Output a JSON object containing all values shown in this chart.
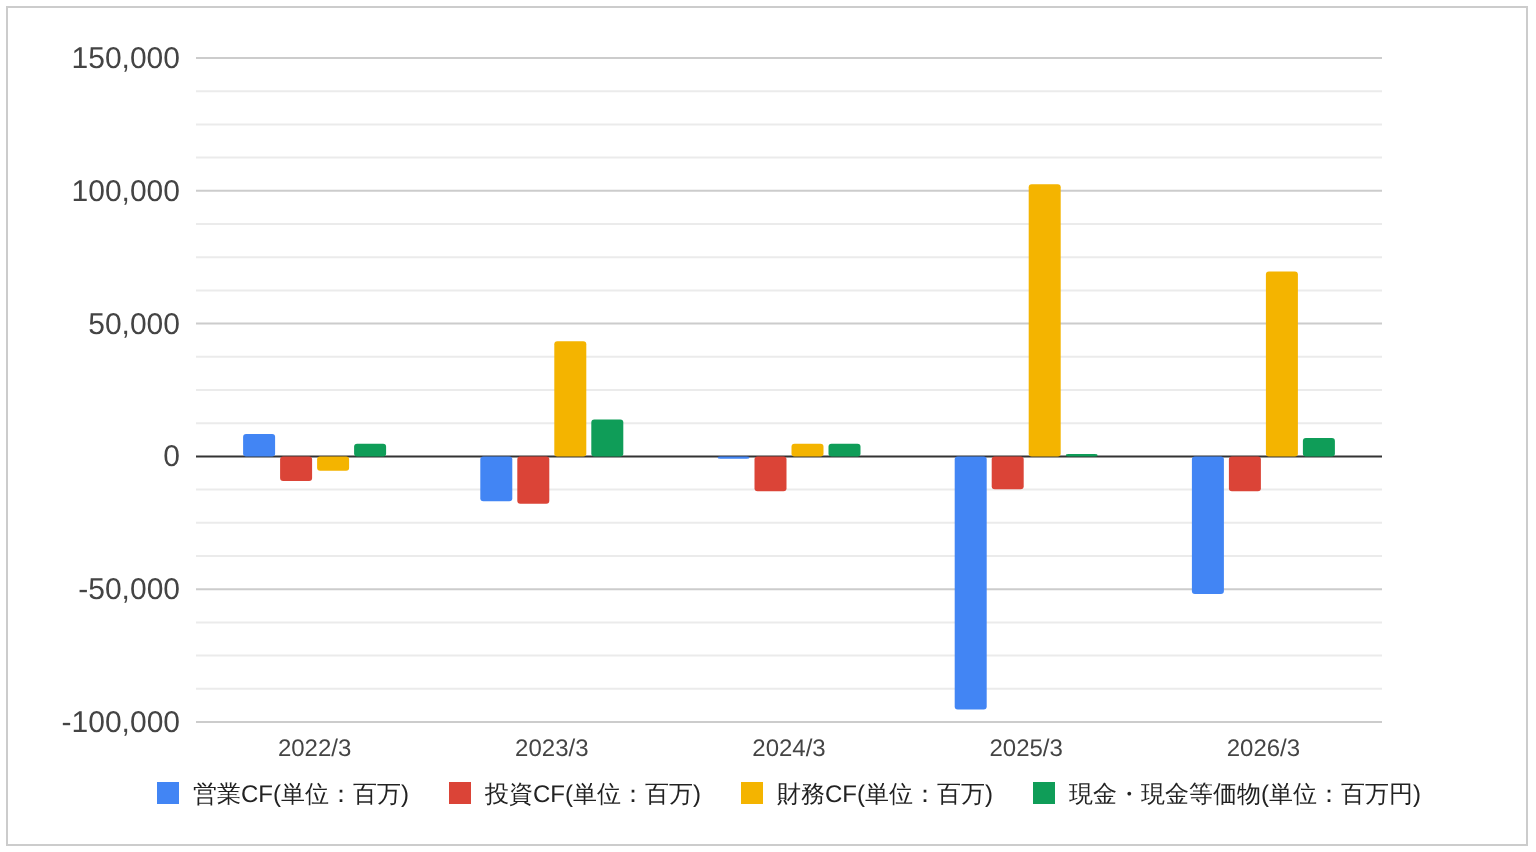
{
  "chart_data": {
    "type": "bar",
    "categories": [
      "2022/3",
      "2023/3",
      "2024/3",
      "2025/3",
      "2026/3"
    ],
    "series": [
      {
        "name": "営業CF(単位：百万)",
        "color": "#4285f4",
        "values": [
          8400,
          -16900,
          -900,
          -95300,
          -51800
        ]
      },
      {
        "name": "投資CF(単位：百万)",
        "color": "#db4437",
        "values": [
          -9300,
          -17800,
          -13100,
          -12400,
          -13100
        ]
      },
      {
        "name": "財務CF(単位：百万)",
        "color": "#f4b400",
        "values": [
          -5400,
          43400,
          4800,
          102500,
          69600
        ]
      },
      {
        "name": "現金・現金等価物(単位：百万円)",
        "color": "#0f9d58",
        "values": [
          4800,
          13900,
          4800,
          900,
          6900
        ]
      }
    ],
    "ylim": [
      -100000,
      150000
    ],
    "yticks": [
      {
        "value": -100000,
        "label": "-100,000"
      },
      {
        "value": -87500,
        "label": null
      },
      {
        "value": -75000,
        "label": null
      },
      {
        "value": -62500,
        "label": null
      },
      {
        "value": -50000,
        "label": "-50,000"
      },
      {
        "value": -37500,
        "label": null
      },
      {
        "value": -25000,
        "label": null
      },
      {
        "value": -12500,
        "label": null
      },
      0,
      {
        "value": 12500,
        "label": null
      },
      {
        "value": 25000,
        "label": null
      },
      {
        "value": 37500,
        "label": null
      },
      {
        "value": 50000,
        "label": "50,000"
      },
      {
        "value": 62500,
        "label": null
      },
      {
        "value": 75000,
        "label": null
      },
      {
        "value": 87500,
        "label": null
      },
      {
        "value": 100000,
        "label": "100,000"
      },
      {
        "value": 112500,
        "label": null
      },
      {
        "value": 125000,
        "label": null
      },
      {
        "value": 137500,
        "label": null
      },
      {
        "value": 150000,
        "label": "150,000"
      }
    ],
    "grid": "y",
    "legend": "bottom"
  }
}
